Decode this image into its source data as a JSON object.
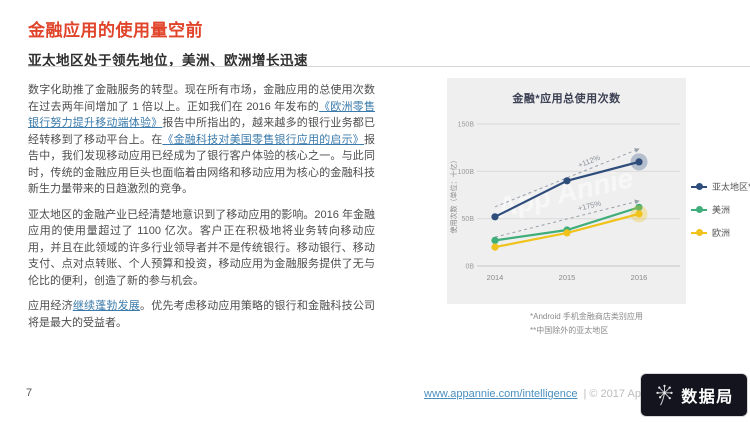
{
  "header": {
    "title": "金融应用的使用量空前",
    "subtitle": "亚太地区处于领先地位，美洲、欧洲增长迅速"
  },
  "paragraphs": [
    {
      "segments": [
        {
          "text": "数字化助推了金融服务的转型。现在所有市场，金融应用的总使用次数在过去两年间增加了 1 倍以上。正如我们在 2016 年发布的",
          "link": false
        },
        {
          "text": "《欧洲零售银行努力提升移动端体验》",
          "link": true
        },
        {
          "text": "报告中所指出的，越来越多的银行业务都已经转移到了移动平台上。在",
          "link": false
        },
        {
          "text": "《金融科技对美国零售银行应用的启示》",
          "link": true
        },
        {
          "text": "报告中，我们发现移动应用已经成为了银行客户体验的核心之一。与此同时，传统的金融应用巨头也面临着由网络和移动应用为核心的金融科技新生力量带来的日趋激烈的竞争。",
          "link": false
        }
      ]
    },
    {
      "segments": [
        {
          "text": "亚太地区的金融产业已经清楚地意识到了移动应用的影响。2016 年金融应用的使用量超过了 1100 亿次。客户正在积极地将业务转向移动应用，并且在此领域的许多行业领导者并不是传统银行。移动银行、移动支付、点对点转账、个人预算和投资，移动应用为金融服务提供了无与伦比的便利，创造了新的参与机会。",
          "link": false
        }
      ]
    },
    {
      "segments": [
        {
          "text": "应用经济",
          "link": false
        },
        {
          "text": "继续蓬勃发展",
          "link": true
        },
        {
          "text": "。优先考虑移动应用策略的银行和金融科技公司将是最大的受益者。",
          "link": false
        }
      ]
    }
  ],
  "chart_data": {
    "type": "line",
    "title": "金融*应用总使用次数",
    "ylabel": "使用次数（单位：十亿）",
    "watermark": "App Annie",
    "x": [
      "2014",
      "2015",
      "2016"
    ],
    "ylim": [
      0,
      150
    ],
    "yticks": [
      "0B",
      "50B",
      "100B",
      "150B"
    ],
    "grid": true,
    "legend_position": "right",
    "series": [
      {
        "name": "亚太地区**",
        "color": "#2e4d7b",
        "values": [
          52,
          90,
          110
        ],
        "growth": "+112%",
        "halo": true
      },
      {
        "name": "美洲",
        "color": "#3fae7a",
        "values": [
          27,
          38,
          62
        ]
      },
      {
        "name": "欧洲",
        "color": "#f0c31c",
        "values": [
          20,
          35,
          55
        ],
        "growth": "+175%",
        "halo": true
      }
    ]
  },
  "footnotes": [
    "*Android 手机金融商店类别应用",
    "**中国除外的亚太地区"
  ],
  "footer": {
    "page_number": "7",
    "url": "www.appannie.com/intelligence",
    "copyright": "| © 2017 App Annie"
  },
  "watermark_logo": {
    "text": "数据局"
  },
  "colors": {
    "accent_red": "#e0442a",
    "link_blue": "#3b7bab",
    "card_bg": "#efeff0",
    "apac_blue": "#2e4d7b",
    "americas_green": "#3fae7a",
    "europe_yellow": "#f0c31c"
  }
}
